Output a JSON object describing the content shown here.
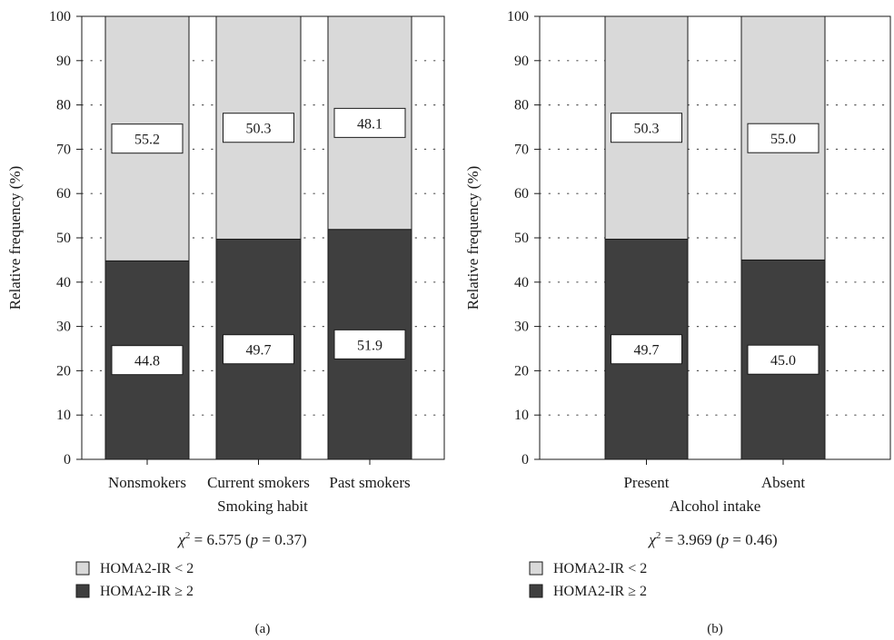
{
  "chart_data": [
    {
      "type": "bar",
      "stacked": true,
      "panel_label": "(a)",
      "categories": [
        "Nonsmokers",
        "Current smokers",
        "Past smokers"
      ],
      "series": [
        {
          "name": "HOMA2-IR ≥ 2",
          "values": [
            44.8,
            49.7,
            51.9
          ],
          "color": "#3f3f3f"
        },
        {
          "name": "HOMA2-IR < 2",
          "values": [
            55.2,
            50.3,
            48.1
          ],
          "color": "#d9d9d9"
        }
      ],
      "xlabel": "Smoking habit",
      "ylabel": "Relative frequency (%)",
      "ylim": [
        0,
        100
      ],
      "yticks": [
        0,
        10,
        20,
        30,
        40,
        50,
        60,
        70,
        80,
        90,
        100
      ],
      "grid": "dotted horizontal",
      "stat_text": {
        "chi": "χ",
        "sup": "2",
        "rest1": " = 6.575 (",
        "p": "p",
        "rest2": " = 0.37)"
      },
      "legend": [
        {
          "label": "HOMA2-IR < 2",
          "color": "#d9d9d9"
        },
        {
          "label": "HOMA2-IR ≥ 2",
          "color": "#3f3f3f"
        }
      ]
    },
    {
      "type": "bar",
      "stacked": true,
      "panel_label": "(b)",
      "categories": [
        "Present",
        "Absent"
      ],
      "series": [
        {
          "name": "HOMA2-IR ≥ 2",
          "values": [
            49.7,
            45.0
          ],
          "color": "#3f3f3f"
        },
        {
          "name": "HOMA2-IR < 2",
          "values": [
            50.3,
            55.0
          ],
          "color": "#d9d9d9"
        }
      ],
      "xlabel": "Alcohol intake",
      "ylabel": "Relative frequency (%)",
      "ylim": [
        0,
        100
      ],
      "yticks": [
        0,
        10,
        20,
        30,
        40,
        50,
        60,
        70,
        80,
        90,
        100
      ],
      "grid": "dotted horizontal",
      "stat_text": {
        "chi": "χ",
        "sup": "2",
        "rest1": " = 3.969 (",
        "p": "p",
        "rest2": " = 0.46)"
      },
      "legend": [
        {
          "label": "HOMA2-IR < 2",
          "color": "#d9d9d9"
        },
        {
          "label": "HOMA2-IR ≥ 2",
          "color": "#3f3f3f"
        }
      ]
    }
  ]
}
